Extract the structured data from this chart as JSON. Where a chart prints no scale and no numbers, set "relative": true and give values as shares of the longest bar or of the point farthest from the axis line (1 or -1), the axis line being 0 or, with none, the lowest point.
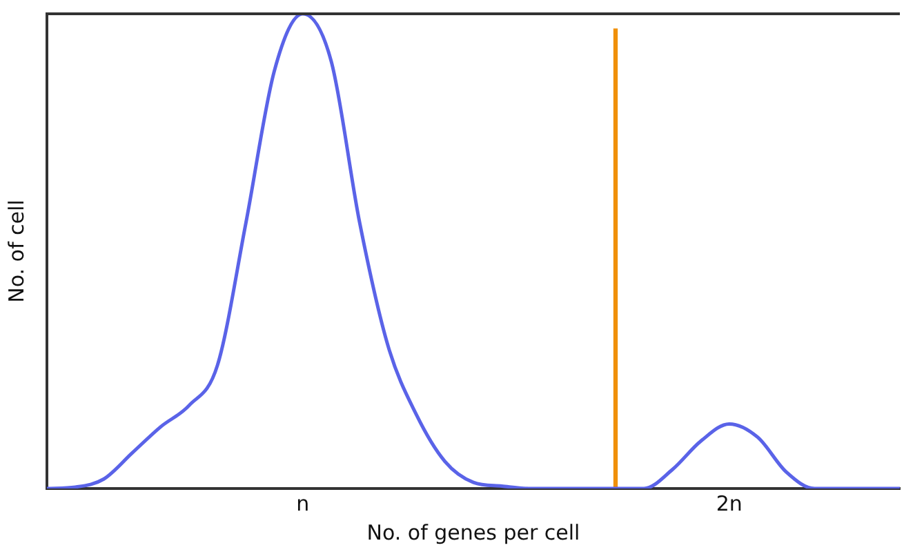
{
  "chart_data": {
    "type": "line",
    "relative": true,
    "xlabel": "No. of genes per cell",
    "ylabel": "No. of cell",
    "categories": [
      null,
      null,
      null,
      null,
      null,
      null,
      null,
      null,
      null,
      "n",
      null,
      null,
      null,
      null,
      null,
      null,
      null,
      null,
      null,
      null,
      null,
      null,
      null,
      null,
      "2n",
      null,
      null,
      null,
      null,
      null,
      null
    ],
    "tick_labels": "x",
    "grid": false,
    "legend": false,
    "marker": "none",
    "series": [
      {
        "color": "#5a63e8",
        "values": [
          0,
          0.003,
          0.02,
          0.075,
          0.13,
          0.175,
          0.26,
          0.56,
          0.88,
          1,
          0.9,
          0.56,
          0.3,
          0.155,
          0.057,
          0.013,
          0.005,
          0,
          0,
          0,
          0,
          0,
          0.04,
          0.1,
          0.136,
          0.108,
          0.035,
          0,
          0,
          0,
          0
        ]
      },
      {
        "type": "bar",
        "color": "#f0900a",
        "values": [
          null,
          null,
          null,
          null,
          null,
          null,
          null,
          null,
          null,
          null,
          null,
          null,
          null,
          null,
          null,
          null,
          null,
          null,
          null,
          null,
          0.968,
          null,
          null,
          null,
          null,
          null,
          null,
          null,
          null,
          null,
          null
        ]
      }
    ]
  }
}
